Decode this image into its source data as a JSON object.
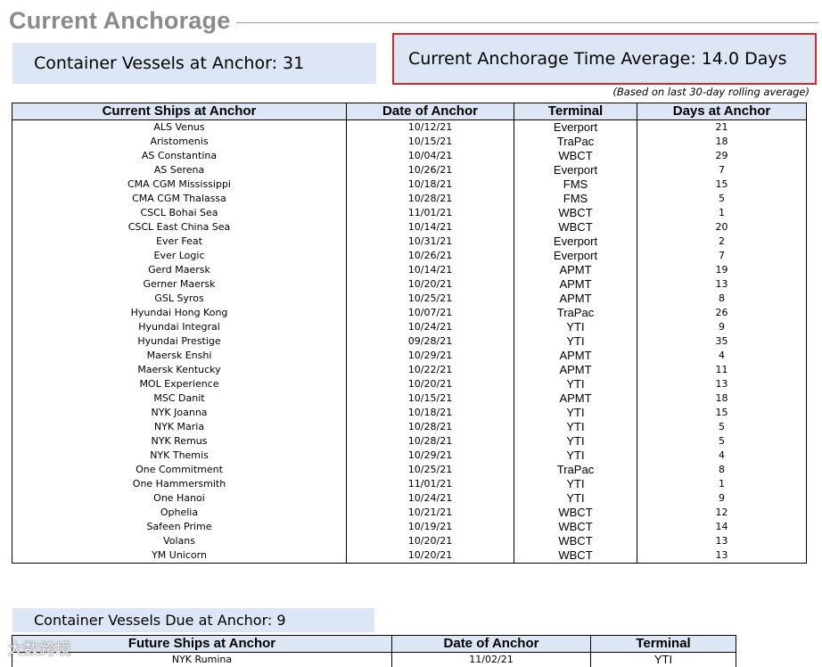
{
  "title": "Current Anchorage",
  "vessels_at_anchor": "Container Vessels at Anchor:  31",
  "anchorage_average": "Current Anchorage Time Average: 14.0 Days",
  "average_note": "(Based on last 30-day rolling average)",
  "ships_table": {
    "headers": [
      "Current Ships at Anchor",
      "Date of Anchor",
      "Terminal",
      "Days at Anchor"
    ],
    "rows": [
      [
        "ALS Venus",
        "10/12/21",
        "Everport",
        "21"
      ],
      [
        "Aristomenis",
        "10/15/21",
        "TraPac",
        "18"
      ],
      [
        "AS Constantina",
        "10/04/21",
        "WBCT",
        "29"
      ],
      [
        "AS Serena",
        "10/26/21",
        "Everport",
        "7"
      ],
      [
        "CMA CGM Mississippi",
        "10/18/21",
        "FMS",
        "15"
      ],
      [
        "CMA CGM Thalassa",
        "10/28/21",
        "FMS",
        "5"
      ],
      [
        "CSCL Bohai Sea",
        "11/01/21",
        "WBCT",
        "1"
      ],
      [
        "CSCL East China Sea",
        "10/14/21",
        "WBCT",
        "20"
      ],
      [
        "Ever Feat",
        "10/31/21",
        "Everport",
        "2"
      ],
      [
        "Ever Logic",
        "10/26/21",
        "Everport",
        "7"
      ],
      [
        "Gerd Maersk",
        "10/14/21",
        "APMT",
        "19"
      ],
      [
        "Gerner Maersk",
        "10/20/21",
        "APMT",
        "13"
      ],
      [
        "GSL Syros",
        "10/25/21",
        "APMT",
        "8"
      ],
      [
        "Hyundai Hong Kong",
        "10/07/21",
        "TraPac",
        "26"
      ],
      [
        "Hyundai Integral",
        "10/24/21",
        "YTI",
        "9"
      ],
      [
        "Hyundai Prestige",
        "09/28/21",
        "YTI",
        "35"
      ],
      [
        "Maersk Enshi",
        "10/29/21",
        "APMT",
        "4"
      ],
      [
        "Maersk Kentucky",
        "10/22/21",
        "APMT",
        "11"
      ],
      [
        "MOL Experience",
        "10/20/21",
        "YTI",
        "13"
      ],
      [
        "MSC Danit",
        "10/15/21",
        "APMT",
        "18"
      ],
      [
        "NYK Joanna",
        "10/18/21",
        "YTI",
        "15"
      ],
      [
        "NYK Maria",
        "10/28/21",
        "YTI",
        "5"
      ],
      [
        "NYK Remus",
        "10/28/21",
        "YTI",
        "5"
      ],
      [
        "NYK Themis",
        "10/29/21",
        "YTI",
        "4"
      ],
      [
        "One Commitment",
        "10/25/21",
        "TraPac",
        "8"
      ],
      [
        "One Hammersmith",
        "11/01/21",
        "YTI",
        "1"
      ],
      [
        "One Hanoi",
        "10/24/21",
        "YTI",
        "9"
      ],
      [
        "Ophelia",
        "10/21/21",
        "WBCT",
        "12"
      ],
      [
        "Safeen Prime",
        "10/19/21",
        "WBCT",
        "14"
      ],
      [
        "Volans",
        "10/20/21",
        "WBCT",
        "13"
      ],
      [
        "YM Unicorn",
        "10/20/21",
        "WBCT",
        "13"
      ]
    ]
  },
  "vessels_due": "Container Vessels Due at Anchor:  9",
  "future_table": {
    "headers": [
      "Future Ships at Anchor",
      "Date of Anchor",
      "Terminal"
    ],
    "rows": [
      [
        "NYK Rumina",
        "11/02/21",
        "YTI"
      ]
    ]
  },
  "watermark": "大数跨境"
}
